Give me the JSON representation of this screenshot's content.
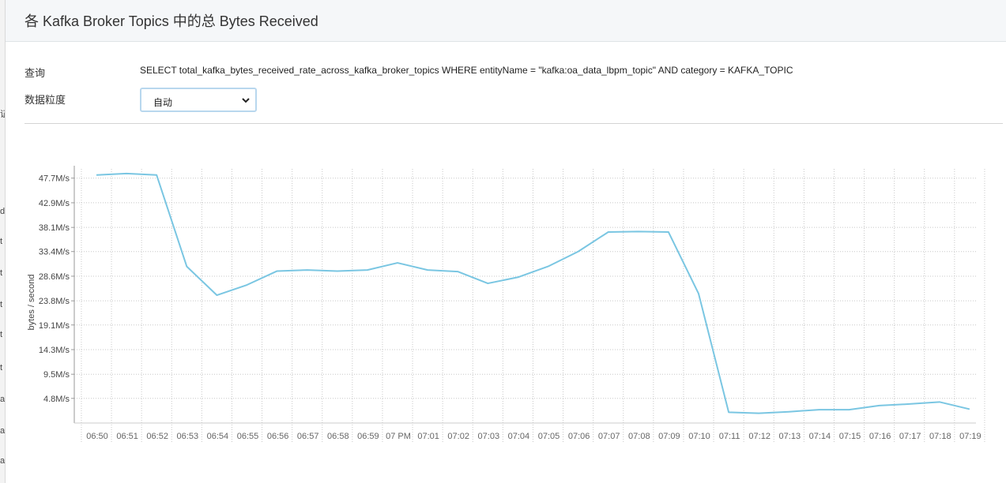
{
  "background_fragments": [
    "证",
    "d",
    "t",
    "t",
    "t",
    "t",
    "t",
    "a",
    "a",
    "a"
  ],
  "dialog": {
    "title": "各 Kafka Broker Topics 中的总 Bytes Received"
  },
  "query": {
    "label": "查询",
    "text": "SELECT total_kafka_bytes_received_rate_across_kafka_broker_topics WHERE entityName = \"kafka:oa_data_lbpm_topic\" AND category = KAFKA_TOPIC"
  },
  "granularity": {
    "label": "数据粒度",
    "selected": "自动"
  },
  "colors": {
    "line": "#7ac6e2",
    "grid": "#c8c8c8",
    "header_bg": "#f5f7f9",
    "select_border": "#b8d7ee"
  },
  "chart_data": {
    "type": "line",
    "ylabel": "bytes / second",
    "y_ticks": [
      "4.8M/s",
      "9.5M/s",
      "14.3M/s",
      "19.1M/s",
      "23.8M/s",
      "28.6M/s",
      "33.4M/s",
      "38.1M/s",
      "42.9M/s",
      "47.7M/s"
    ],
    "y_tick_values": [
      4.8,
      9.5,
      14.3,
      19.1,
      23.8,
      28.6,
      33.4,
      38.1,
      42.9,
      47.7
    ],
    "ylim": [
      0,
      49.5
    ],
    "y_unit": "M/s",
    "grid": true,
    "categories": [
      "06:50",
      "06:51",
      "06:52",
      "06:53",
      "06:54",
      "06:55",
      "06:56",
      "06:57",
      "06:58",
      "06:59",
      "07 PM",
      "07:01",
      "07:02",
      "07:03",
      "07:04",
      "07:05",
      "07:06",
      "07:07",
      "07:08",
      "07:09",
      "07:10",
      "07:11",
      "07:12",
      "07:13",
      "07:14",
      "07:15",
      "07:16",
      "07:17",
      "07:18",
      "07:19"
    ],
    "series": [
      {
        "values": [
          48.3,
          48.6,
          48.3,
          30.5,
          24.9,
          26.9,
          29.6,
          29.8,
          29.6,
          29.8,
          31.2,
          29.8,
          29.5,
          27.2,
          28.4,
          30.5,
          33.4,
          37.2,
          37.3,
          37.2,
          25.2,
          2.1,
          1.9,
          2.2,
          2.6,
          2.6,
          3.4,
          3.7,
          4.1,
          2.7
        ]
      }
    ]
  }
}
